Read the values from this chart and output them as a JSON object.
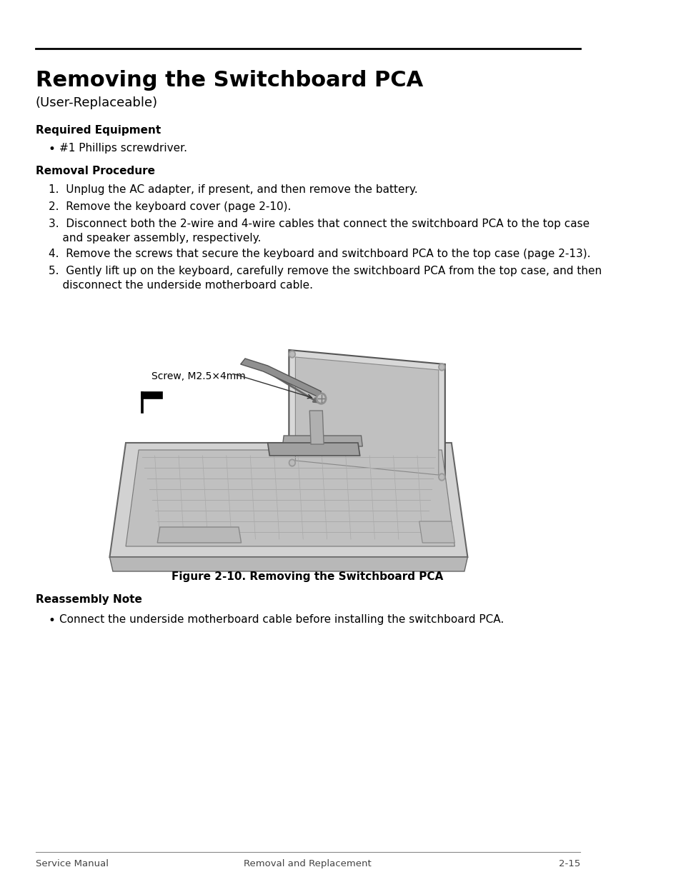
{
  "title_main": "Removing the Switchboard PCA",
  "title_sub": "(User-Replaceable)",
  "section1_header": "Required Equipment",
  "bullet1": "#1 Phillips screwdriver.",
  "section2_header": "Removal Procedure",
  "steps": [
    "1.  Unplug the AC adapter, if present, and then remove the battery.",
    "2.  Remove the keyboard cover (page 2-10).",
    "3.  Disconnect both the 2-wire and 4-wire cables that connect the switchboard PCA to the top case\n      and speaker assembly, respectively.",
    "4.  Remove the screws that secure the keyboard and switchboard PCA to the top case (page 2-13).",
    "5.  Gently lift up on the keyboard, carefully remove the switchboard PCA from the top case, and then\n      disconnect the underside motherboard cable."
  ],
  "screw_label": "Screw, M2.5×4mm",
  "figure_caption": "Figure 2-10. Removing the Switchboard PCA",
  "section3_header": "Reassembly Note",
  "reassembly_bullet": "Connect the underside motherboard cable before installing the switchboard PCA.",
  "footer_left": "Service Manual",
  "footer_center": "Removal and Replacement",
  "footer_right": "2-15",
  "bg_color": "#ffffff",
  "text_color": "#000000"
}
